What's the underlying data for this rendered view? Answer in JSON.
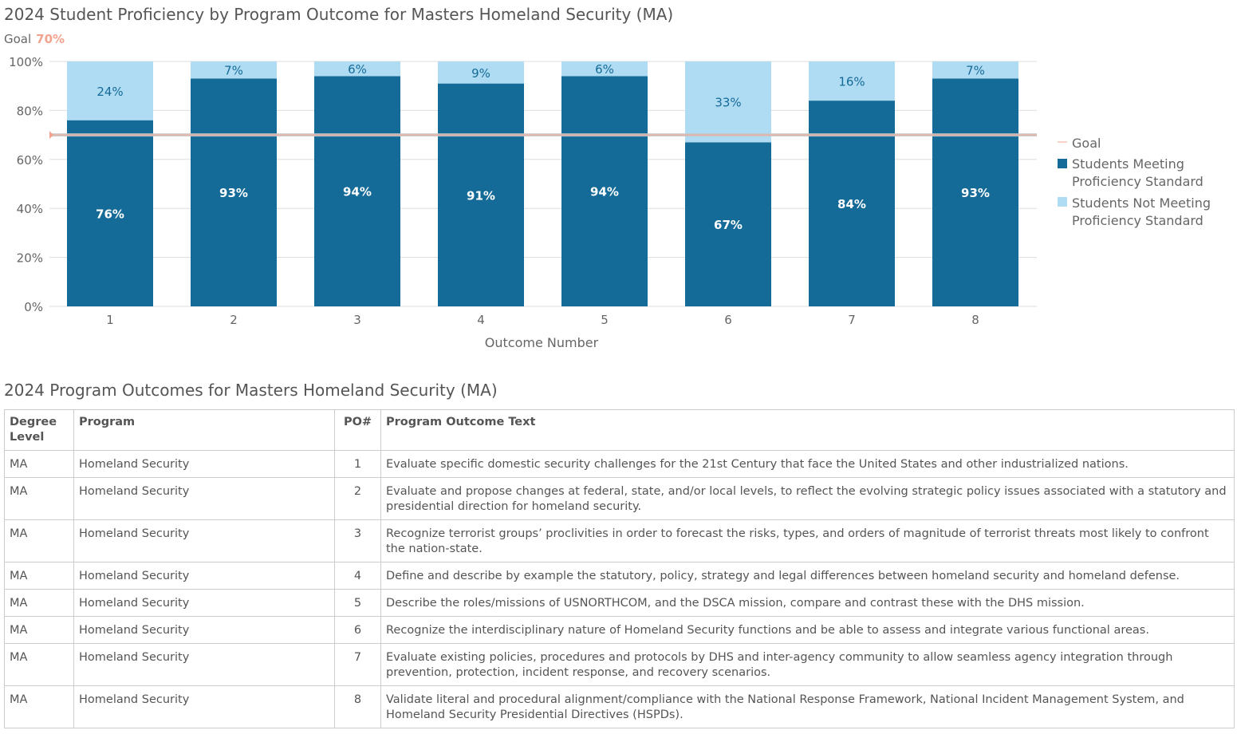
{
  "chart_title": "2024 Student Proficiency by Program Outcome for Masters Homeland Security (MA)",
  "goal_label": "Goal",
  "goal_value": "70%",
  "chart_data": {
    "type": "bar",
    "stacked": true,
    "categories": [
      "1",
      "2",
      "3",
      "4",
      "5",
      "6",
      "7",
      "8"
    ],
    "series": [
      {
        "name": "Students Meeting Proficiency Standard",
        "color": "#156b98",
        "values": [
          76,
          93,
          94,
          91,
          94,
          67,
          84,
          93
        ],
        "labels": [
          "76%",
          "93%",
          "94%",
          "91%",
          "94%",
          "67%",
          "84%",
          "93%"
        ]
      },
      {
        "name": "Students Not Meeting Proficiency Standard",
        "color": "#b0dcf3",
        "values": [
          24,
          7,
          6,
          9,
          6,
          33,
          16,
          7
        ],
        "labels": [
          "24%",
          "7%",
          "6%",
          "9%",
          "6%",
          "33%",
          "16%",
          "7%"
        ]
      }
    ],
    "goal": {
      "name": "Goal",
      "value": 70,
      "color": "#f4a38f"
    },
    "xlabel": "Outcome Number",
    "ylabel": "",
    "ylim": [
      0,
      100
    ],
    "yticks": [
      "0%",
      "20%",
      "40%",
      "60%",
      "80%",
      "100%"
    ],
    "grid": true,
    "legend": "right"
  },
  "table_title": "2024 Program Outcomes for Masters Homeland Security (MA)",
  "table": {
    "headers": [
      "Degree Level",
      "Program",
      "PO#",
      "Program Outcome Text"
    ],
    "rows": [
      [
        "MA",
        "Homeland Security",
        "1",
        "Evaluate specific domestic security challenges for the 21st Century that face the United States and other industrialized nations."
      ],
      [
        "MA",
        "Homeland Security",
        "2",
        "Evaluate and propose changes at federal, state, and/or local levels, to reflect the evolving strategic policy issues associated with a statutory and presidential direction for homeland security."
      ],
      [
        "MA",
        "Homeland Security",
        "3",
        "Recognize terrorist groups’ proclivities in order to forecast the risks, types, and orders of magnitude of terrorist threats most likely to confront the nation-state."
      ],
      [
        "MA",
        "Homeland Security",
        "4",
        "Define and describe by example the statutory, policy, strategy and legal differences between homeland security and homeland defense."
      ],
      [
        "MA",
        "Homeland Security",
        "5",
        "Describe the roles/missions of USNORTHCOM, and the DSCA mission, compare and contrast these with the DHS mission."
      ],
      [
        "MA",
        "Homeland Security",
        "6",
        "Recognize the interdisciplinary nature of Homeland Security functions and be able to assess and integrate various functional areas."
      ],
      [
        "MA",
        "Homeland Security",
        "7",
        "Evaluate existing policies, procedures and protocols by DHS and inter-agency community to allow seamless agency integration through prevention, protection, incident response, and recovery scenarios."
      ],
      [
        "MA",
        "Homeland Security",
        "8",
        "Validate literal and procedural alignment/compliance with the National Response Framework, National Incident Management System, and Homeland Security Presidential Directives (HSPDs)."
      ]
    ]
  }
}
